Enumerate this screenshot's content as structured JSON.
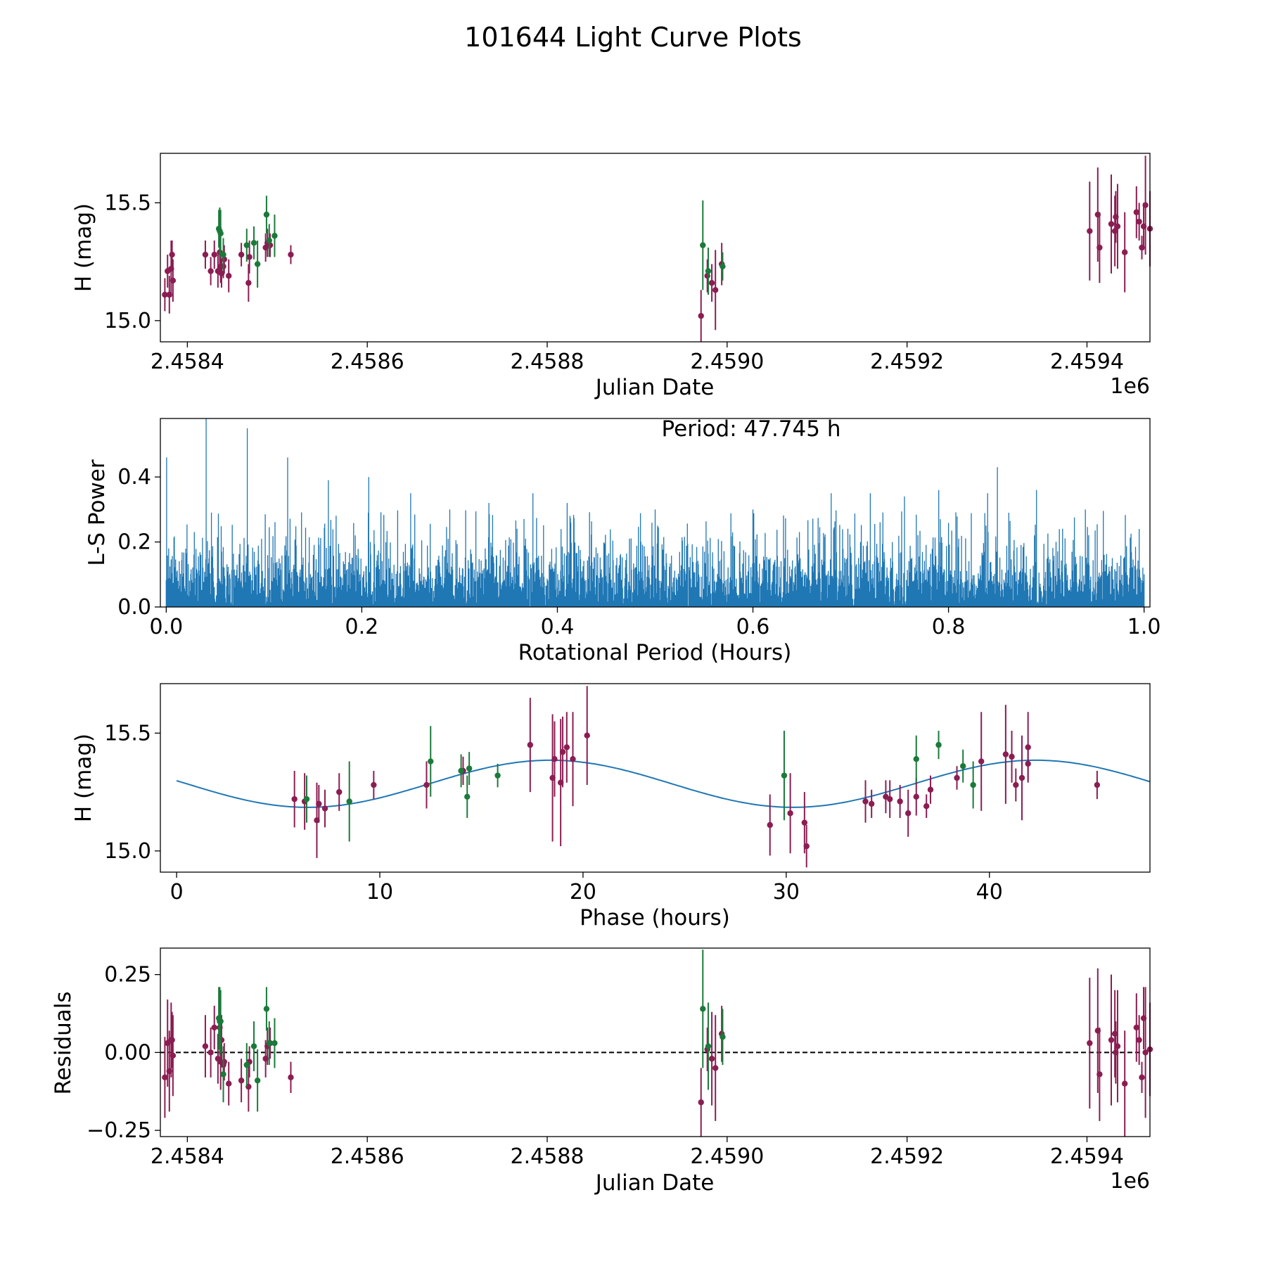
{
  "figure": {
    "title": "101644 Light Curve Plots",
    "colors": {
      "red_points": "#8b1d52",
      "green_points": "#1b7a3a",
      "curve": "#1f77b4",
      "axes": "#000000"
    }
  },
  "chart_data": [
    {
      "id": "lightcurve",
      "type": "scatter",
      "xlabel": "Julian Date",
      "ylabel": "H (mag)",
      "offset_label": "1e6",
      "xlim": [
        2458370,
        2459470
      ],
      "ylim": [
        14.91,
        15.71
      ],
      "xticks": [
        2458400,
        2458600,
        2458800,
        2459000,
        2459200,
        2459400
      ],
      "xtick_labels": [
        "2.4584",
        "2.4586",
        "2.4588",
        "2.4590",
        "2.4592",
        "2.4594"
      ],
      "yticks": [
        15.0,
        15.5
      ],
      "ytick_labels": [
        "15.0",
        "15.5"
      ],
      "series": [
        {
          "name": "red",
          "color": "#8b1d52",
          "points": [
            [
              2458375,
              15.11,
              0.07
            ],
            [
              2458378,
              15.21,
              0.07
            ],
            [
              2458380,
              15.11,
              0.08
            ],
            [
              2458382,
              15.22,
              0.12
            ],
            [
              2458383,
              15.28,
              0.06
            ],
            [
              2458384,
              15.17,
              0.09
            ],
            [
              2458420,
              15.28,
              0.06
            ],
            [
              2458426,
              15.21,
              0.06
            ],
            [
              2458430,
              15.28,
              0.06
            ],
            [
              2458434,
              15.21,
              0.07
            ],
            [
              2458436,
              15.29,
              0.07
            ],
            [
              2458437,
              15.23,
              0.07
            ],
            [
              2458438,
              15.2,
              0.06
            ],
            [
              2458440,
              15.23,
              0.05
            ],
            [
              2458441,
              15.26,
              0.06
            ],
            [
              2458446,
              15.19,
              0.07
            ],
            [
              2458460,
              15.28,
              0.05
            ],
            [
              2458468,
              15.16,
              0.08
            ],
            [
              2458469,
              15.27,
              0.07
            ],
            [
              2458487,
              15.31,
              0.06
            ],
            [
              2458489,
              15.33,
              0.06
            ],
            [
              2458492,
              15.32,
              0.05
            ],
            [
              2458515,
              15.28,
              0.04
            ],
            [
              2458971,
              15.02,
              0.11
            ],
            [
              2458978,
              15.19,
              0.07
            ],
            [
              2458983,
              15.16,
              0.08
            ],
            [
              2458987,
              15.13,
              0.17
            ],
            [
              2458994,
              15.24,
              0.09
            ],
            [
              2459403,
              15.38,
              0.21
            ],
            [
              2459412,
              15.45,
              0.2
            ],
            [
              2459414,
              15.31,
              0.15
            ],
            [
              2459427,
              15.41,
              0.21
            ],
            [
              2459431,
              15.38,
              0.15
            ],
            [
              2459432,
              15.44,
              0.11
            ],
            [
              2459434,
              15.4,
              0.18
            ],
            [
              2459442,
              15.29,
              0.17
            ],
            [
              2459455,
              15.46,
              0.11
            ],
            [
              2459458,
              15.42,
              0.08
            ],
            [
              2459461,
              15.31,
              0.05
            ],
            [
              2459463,
              15.4,
              0.1
            ],
            [
              2459465,
              15.49,
              0.21
            ],
            [
              2459470,
              15.39,
              0.16
            ]
          ]
        },
        {
          "name": "green",
          "color": "#1b7a3a",
          "points": [
            [
              2458435,
              15.39,
              0.08
            ],
            [
              2458436,
              15.38,
              0.1
            ],
            [
              2458437,
              15.37,
              0.1
            ],
            [
              2458440,
              15.28,
              0.07
            ],
            [
              2458466,
              15.32,
              0.07
            ],
            [
              2458474,
              15.33,
              0.07
            ],
            [
              2458478,
              15.24,
              0.1
            ],
            [
              2458488,
              15.45,
              0.08
            ],
            [
              2458491,
              15.34,
              0.07
            ],
            [
              2458497,
              15.36,
              0.09
            ],
            [
              2458973,
              15.32,
              0.19
            ],
            [
              2458979,
              15.21,
              0.1
            ],
            [
              2458995,
              15.23,
              0.06
            ]
          ]
        }
      ]
    },
    {
      "id": "periodogram",
      "type": "line",
      "xlabel": "Rotational Period (Hours)",
      "ylabel": "L-S Power",
      "annotation": "Period: 47.745 h",
      "xlim": [
        -0.006,
        1.006
      ],
      "ylim": [
        0,
        0.58
      ],
      "xticks": [
        0.0,
        0.2,
        0.4,
        0.6,
        0.8,
        1.0
      ],
      "xtick_labels": [
        "0.0",
        "0.2",
        "0.4",
        "0.6",
        "0.8",
        "1.0"
      ],
      "yticks": [
        0.0,
        0.2,
        0.4
      ],
      "ytick_labels": [
        "0.0",
        "0.2",
        "0.4"
      ],
      "peaks": [
        [
          0.0005,
          0.46
        ],
        [
          0.041,
          0.58
        ],
        [
          0.083,
          0.55
        ],
        [
          0.124,
          0.46
        ],
        [
          0.166,
          0.39
        ],
        [
          0.207,
          0.4
        ],
        [
          0.25,
          0.35
        ],
        [
          0.29,
          0.3
        ],
        [
          0.33,
          0.32
        ],
        [
          0.375,
          0.35
        ],
        [
          0.41,
          0.32
        ],
        [
          0.5,
          0.3
        ],
        [
          0.6,
          0.3
        ],
        [
          0.68,
          0.35
        ],
        [
          0.72,
          0.35
        ],
        [
          0.755,
          0.34
        ],
        [
          0.79,
          0.36
        ],
        [
          0.84,
          0.35
        ],
        [
          0.85,
          0.43
        ],
        [
          0.89,
          0.36
        ],
        [
          0.94,
          0.3
        ],
        [
          0.995,
          0.24
        ]
      ],
      "base_level": 0.23
    },
    {
      "id": "phased",
      "type": "scatter",
      "xlabel": "Phase (hours)",
      "ylabel": "H (mag)",
      "xlim": [
        -0.8,
        47.9
      ],
      "ylim": [
        14.91,
        15.71
      ],
      "xticks": [
        0,
        10,
        20,
        30,
        40
      ],
      "xtick_labels": [
        "0",
        "10",
        "20",
        "30",
        "40"
      ],
      "yticks": [
        15.0,
        15.5
      ],
      "ytick_labels": [
        "15.0",
        "15.5"
      ],
      "model": {
        "period_h": 47.745,
        "mean": 15.285,
        "amplitude": 0.1,
        "phase_of_max_h": 18.4
      },
      "series": [
        {
          "name": "red",
          "color": "#8b1d52",
          "points": [
            [
              5.8,
              15.22,
              0.12
            ],
            [
              6.3,
              15.21,
              0.12
            ],
            [
              6.9,
              15.13,
              0.16
            ],
            [
              7.0,
              15.2,
              0.08
            ],
            [
              7.3,
              15.18,
              0.08
            ],
            [
              8.0,
              15.25,
              0.08
            ],
            [
              9.7,
              15.28,
              0.06
            ],
            [
              12.3,
              15.28,
              0.1
            ],
            [
              17.4,
              15.45,
              0.2
            ],
            [
              18.5,
              15.31,
              0.27
            ],
            [
              18.6,
              15.39,
              0.16
            ],
            [
              18.9,
              15.29,
              0.27
            ],
            [
              19.0,
              15.42,
              0.15
            ],
            [
              19.2,
              15.44,
              0.15
            ],
            [
              19.5,
              15.39,
              0.2
            ],
            [
              20.2,
              15.49,
              0.21
            ],
            [
              14.1,
              15.34,
              0.06
            ],
            [
              29.2,
              15.11,
              0.13
            ],
            [
              30.2,
              15.16,
              0.17
            ],
            [
              30.9,
              15.12,
              0.13
            ],
            [
              31.0,
              15.02,
              0.09
            ],
            [
              33.9,
              15.21,
              0.09
            ],
            [
              34.2,
              15.2,
              0.06
            ],
            [
              34.9,
              15.23,
              0.07
            ],
            [
              35.1,
              15.22,
              0.08
            ],
            [
              35.6,
              15.21,
              0.07
            ],
            [
              36.0,
              15.16,
              0.1
            ],
            [
              36.4,
              15.23,
              0.08
            ],
            [
              36.9,
              15.19,
              0.05
            ],
            [
              37.1,
              15.26,
              0.06
            ],
            [
              38.4,
              15.31,
              0.05
            ],
            [
              39.6,
              15.38,
              0.21
            ],
            [
              40.8,
              15.41,
              0.21
            ],
            [
              41.1,
              15.4,
              0.11
            ],
            [
              41.3,
              15.28,
              0.07
            ],
            [
              41.6,
              15.31,
              0.18
            ],
            [
              41.9,
              15.37,
              0.07
            ],
            [
              41.9,
              15.44,
              0.15
            ],
            [
              45.3,
              15.28,
              0.06
            ]
          ]
        },
        {
          "name": "green",
          "color": "#1b7a3a",
          "points": [
            [
              6.4,
              15.22,
              0.1
            ],
            [
              8.5,
              15.21,
              0.17
            ],
            [
              12.5,
              15.38,
              0.15
            ],
            [
              14.0,
              15.34,
              0.07
            ],
            [
              14.3,
              15.23,
              0.09
            ],
            [
              14.4,
              15.35,
              0.07
            ],
            [
              15.8,
              15.32,
              0.05
            ],
            [
              29.9,
              15.32,
              0.19
            ],
            [
              36.4,
              15.39,
              0.1
            ],
            [
              37.5,
              15.45,
              0.06
            ],
            [
              38.7,
              15.36,
              0.07
            ],
            [
              39.2,
              15.28,
              0.1
            ]
          ]
        }
      ]
    },
    {
      "id": "residuals",
      "type": "scatter",
      "xlabel": "Julian Date",
      "ylabel": "Residuals",
      "offset_label": "1e6",
      "xlim": [
        2458370,
        2459470
      ],
      "ylim": [
        -0.27,
        0.335
      ],
      "xticks": [
        2458400,
        2458600,
        2458800,
        2459000,
        2459200,
        2459400
      ],
      "xtick_labels": [
        "2.4584",
        "2.4586",
        "2.4588",
        "2.4590",
        "2.4592",
        "2.4594"
      ],
      "yticks": [
        -0.25,
        0.0,
        0.25
      ],
      "ytick_labels": [
        "−0.25",
        "0.00",
        "0.25"
      ],
      "zero_line": 0.0,
      "series": [
        {
          "name": "red",
          "color": "#8b1d52",
          "points": [
            [
              2458375,
              -0.08,
              0.13
            ],
            [
              2458378,
              0.03,
              0.14
            ],
            [
              2458380,
              -0.06,
              0.13
            ],
            [
              2458382,
              0.04,
              0.12
            ],
            [
              2458383,
              0.04,
              0.09
            ],
            [
              2458384,
              -0.01,
              0.13
            ],
            [
              2458420,
              0.02,
              0.1
            ],
            [
              2458426,
              0.0,
              0.08
            ],
            [
              2458430,
              0.08,
              0.07
            ],
            [
              2458434,
              -0.02,
              0.08
            ],
            [
              2458436,
              0.08,
              0.07
            ],
            [
              2458437,
              -0.03,
              0.09
            ],
            [
              2458438,
              0.04,
              0.08
            ],
            [
              2458440,
              -0.04,
              0.06
            ],
            [
              2458441,
              -0.03,
              0.06
            ],
            [
              2458446,
              -0.1,
              0.07
            ],
            [
              2458460,
              -0.09,
              0.07
            ],
            [
              2458468,
              -0.11,
              0.08
            ],
            [
              2458469,
              -0.03,
              0.05
            ],
            [
              2458487,
              -0.02,
              0.06
            ],
            [
              2458489,
              0.02,
              0.06
            ],
            [
              2458492,
              0.03,
              0.05
            ],
            [
              2458515,
              -0.08,
              0.05
            ],
            [
              2458971,
              -0.16,
              0.11
            ],
            [
              2458978,
              0.01,
              0.07
            ],
            [
              2458983,
              -0.02,
              0.15
            ],
            [
              2458987,
              -0.05,
              0.17
            ],
            [
              2458994,
              0.06,
              0.09
            ],
            [
              2459403,
              0.03,
              0.21
            ],
            [
              2459412,
              0.07,
              0.2
            ],
            [
              2459414,
              -0.07,
              0.15
            ],
            [
              2459427,
              0.04,
              0.21
            ],
            [
              2459431,
              0.06,
              0.14
            ],
            [
              2459432,
              0.0,
              0.1
            ],
            [
              2459434,
              0.02,
              0.18
            ],
            [
              2459442,
              -0.1,
              0.17
            ],
            [
              2459455,
              0.08,
              0.11
            ],
            [
              2459458,
              0.04,
              0.08
            ],
            [
              2459461,
              -0.08,
              0.05
            ],
            [
              2459463,
              0.11,
              0.1
            ],
            [
              2459465,
              0.0,
              0.21
            ],
            [
              2459470,
              0.01,
              0.15
            ]
          ]
        },
        {
          "name": "green",
          "color": "#1b7a3a",
          "points": [
            [
              2458435,
              0.11,
              0.1
            ],
            [
              2458436,
              0.1,
              0.11
            ],
            [
              2458437,
              0.1,
              0.1
            ],
            [
              2458440,
              -0.07,
              0.09
            ],
            [
              2458466,
              -0.04,
              0.07
            ],
            [
              2458474,
              0.02,
              0.08
            ],
            [
              2458478,
              -0.09,
              0.1
            ],
            [
              2458488,
              0.14,
              0.07
            ],
            [
              2458491,
              0.03,
              0.07
            ],
            [
              2458497,
              0.03,
              0.08
            ],
            [
              2458973,
              0.14,
              0.19
            ],
            [
              2458979,
              0.02,
              0.14
            ],
            [
              2458995,
              0.05,
              0.09
            ]
          ]
        }
      ]
    }
  ]
}
